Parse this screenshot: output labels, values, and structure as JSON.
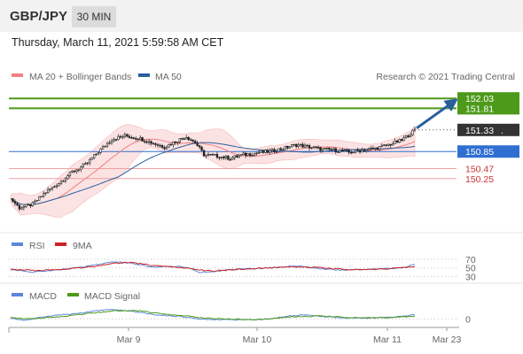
{
  "header": {
    "symbol": "GBP/JPY",
    "timeframe": "30 MIN"
  },
  "timestamp": "Thursday, March 11, 2021 5:59:58 AM CET",
  "copyright": "Research © 2021 Trading Central",
  "colors": {
    "ma20": "#f08080",
    "bollinger_fill": "#fbdede",
    "ma50": "#2a5f9e",
    "target": "#4d9a1a",
    "support": "#cc3333",
    "pivot": "#2f6fd1",
    "last_price_bg": "#333333",
    "arrow": "#2a5f9e",
    "rsi": "#5b87d8",
    "rsi_ma": "#cc2222",
    "macd": "#5b87d8",
    "macd_signal": "#4d9a1a"
  },
  "chart_data": [
    {
      "type": "candlestick",
      "title": "GBP/JPY",
      "legend": [
        "MA 20 + Bollinger Bands",
        "MA 50"
      ],
      "legend_position": "top-left",
      "x_ticks": [
        "Mar 9",
        "Mar 10",
        "Mar 11",
        "Mar 23"
      ],
      "ylim": [
        149.4,
        152.25
      ],
      "grid": false,
      "levels": [
        {
          "value": 152.03,
          "label": "152.03",
          "kind": "target"
        },
        {
          "value": 151.81,
          "label": "151.81",
          "kind": "target"
        },
        {
          "value": 151.33,
          "label": "151.33",
          "kind": "last"
        },
        {
          "value": 150.85,
          "label": "150.85",
          "kind": "pivot"
        },
        {
          "value": 150.47,
          "label": "150.47",
          "kind": "support"
        },
        {
          "value": 150.25,
          "label": "150.25",
          "kind": "support"
        }
      ],
      "last_label_suffix": ".",
      "close_anchors": [
        [
          0,
          149.8
        ],
        [
          4,
          149.6
        ],
        [
          10,
          149.68
        ],
        [
          16,
          149.95
        ],
        [
          22,
          150.15
        ],
        [
          28,
          150.4
        ],
        [
          34,
          150.55
        ],
        [
          40,
          150.85
        ],
        [
          46,
          151.12
        ],
        [
          52,
          151.2
        ],
        [
          58,
          151.15
        ],
        [
          64,
          151.05
        ],
        [
          70,
          150.95
        ],
        [
          76,
          151.1
        ],
        [
          80,
          151.18
        ],
        [
          84,
          151.05
        ],
        [
          88,
          150.78
        ],
        [
          94,
          150.75
        ],
        [
          100,
          150.7
        ],
        [
          106,
          150.78
        ],
        [
          112,
          150.82
        ],
        [
          118,
          150.85
        ],
        [
          124,
          150.92
        ],
        [
          130,
          151.0
        ],
        [
          136,
          150.95
        ],
        [
          142,
          150.9
        ],
        [
          148,
          150.88
        ],
        [
          154,
          150.83
        ],
        [
          160,
          150.88
        ],
        [
          166,
          150.92
        ],
        [
          172,
          151.0
        ],
        [
          178,
          151.1
        ],
        [
          184,
          151.33
        ]
      ],
      "bars": 184,
      "forecast_arrow": {
        "from": 151.33,
        "to": 152.0
      }
    },
    {
      "type": "line",
      "title": "RSI",
      "legend": [
        "RSI",
        "9MA"
      ],
      "y_ticks": [
        70,
        50,
        30
      ],
      "ylim": [
        25,
        78
      ],
      "series": [
        {
          "name": "RSI",
          "anchors": [
            [
              0,
              46
            ],
            [
              10,
              40
            ],
            [
              20,
              45
            ],
            [
              30,
              50
            ],
            [
              40,
              58
            ],
            [
              48,
              65
            ],
            [
              56,
              60
            ],
            [
              64,
              52
            ],
            [
              72,
              54
            ],
            [
              80,
              52
            ],
            [
              86,
              40
            ],
            [
              92,
              42
            ],
            [
              100,
              46
            ],
            [
              108,
              48
            ],
            [
              116,
              50
            ],
            [
              124,
              52
            ],
            [
              130,
              55
            ],
            [
              138,
              50
            ],
            [
              146,
              46
            ],
            [
              154,
              45
            ],
            [
              162,
              47
            ],
            [
              170,
              48
            ],
            [
              178,
              50
            ],
            [
              184,
              58
            ]
          ]
        },
        {
          "name": "9MA",
          "anchors": [
            [
              0,
              47
            ],
            [
              12,
              44
            ],
            [
              24,
              47
            ],
            [
              36,
              52
            ],
            [
              46,
              60
            ],
            [
              54,
              63
            ],
            [
              64,
              56
            ],
            [
              74,
              53
            ],
            [
              84,
              47
            ],
            [
              92,
              43
            ],
            [
              102,
              46
            ],
            [
              112,
              49
            ],
            [
              122,
              51
            ],
            [
              132,
              53
            ],
            [
              142,
              50
            ],
            [
              152,
              47
            ],
            [
              162,
              46
            ],
            [
              172,
              48
            ],
            [
              184,
              53
            ]
          ]
        }
      ]
    },
    {
      "type": "line",
      "title": "MACD",
      "legend": [
        "MACD",
        "MACD Signal"
      ],
      "y_ticks": [
        0
      ],
      "ylim": [
        -0.2,
        0.4
      ],
      "series": [
        {
          "name": "MACD",
          "anchors": [
            [
              0,
              0.02
            ],
            [
              6,
              -0.05
            ],
            [
              14,
              0.05
            ],
            [
              22,
              0.12
            ],
            [
              30,
              0.15
            ],
            [
              40,
              0.25
            ],
            [
              48,
              0.28
            ],
            [
              56,
              0.22
            ],
            [
              66,
              0.12
            ],
            [
              76,
              0.08
            ],
            [
              86,
              0.0
            ],
            [
              96,
              -0.02
            ],
            [
              108,
              -0.03
            ],
            [
              118,
              0.0
            ],
            [
              126,
              0.08
            ],
            [
              134,
              0.12
            ],
            [
              144,
              0.06
            ],
            [
              154,
              0.02
            ],
            [
              164,
              0.03
            ],
            [
              174,
              0.05
            ],
            [
              184,
              0.12
            ]
          ]
        },
        {
          "name": "MACD Signal",
          "anchors": [
            [
              0,
              0.04
            ],
            [
              8,
              0.0
            ],
            [
              18,
              0.04
            ],
            [
              28,
              0.1
            ],
            [
              38,
              0.18
            ],
            [
              48,
              0.24
            ],
            [
              58,
              0.24
            ],
            [
              68,
              0.16
            ],
            [
              78,
              0.1
            ],
            [
              88,
              0.03
            ],
            [
              100,
              -0.01
            ],
            [
              112,
              -0.02
            ],
            [
              122,
              0.02
            ],
            [
              132,
              0.08
            ],
            [
              142,
              0.08
            ],
            [
              152,
              0.05
            ],
            [
              162,
              0.03
            ],
            [
              174,
              0.04
            ],
            [
              184,
              0.08
            ]
          ]
        }
      ]
    }
  ]
}
